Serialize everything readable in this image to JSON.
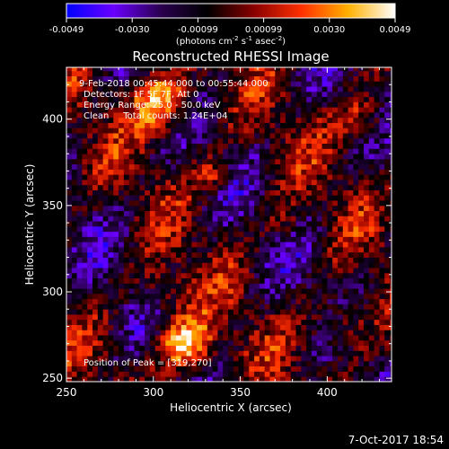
{
  "colorbar": {
    "ticks": [
      "-0.0049",
      "-0.0030",
      "-0.00099",
      "0.00099",
      "0.0030",
      "0.0049"
    ],
    "unit_label_base": "(photons cm",
    "unit_label_exp1": "-2",
    "unit_label_mid": " s",
    "unit_label_exp2": "-1",
    "unit_label_end": " asec",
    "unit_label_exp3": "-2",
    "unit_label_close": ")",
    "range": [
      -0.0049,
      0.0049
    ],
    "colors": [
      "#0000ff",
      "#6a00ff",
      "#2b0050",
      "#000000",
      "#8a0000",
      "#ff3000",
      "#ffb000",
      "#ffffff"
    ]
  },
  "annotations": {
    "line1": "9-Feb-2018 00:45:44.000 to 00:55:44.000",
    "line2": "Detectors: 1F 5F 7F, Att 0",
    "line3": "Energy Range: 25.0 - 50.0 keV",
    "line4": "Clean     Total counts: 1.24E+04",
    "peak": "Position of Peak = [319,270]"
  },
  "footer": {
    "timestamp": "7-Oct-2017 18:54"
  },
  "chart_data": {
    "type": "heatmap",
    "title": "Reconstructed RHESSI Image",
    "xlabel": "Heliocentric X (arcsec)",
    "ylabel": "Heliocentric Y (arcsec)",
    "xlim": [
      250,
      437
    ],
    "ylim": [
      248,
      430
    ],
    "x_ticks": [
      "250",
      "300",
      "350",
      "400"
    ],
    "y_ticks": [
      "250",
      "300",
      "350",
      "400"
    ],
    "peak": {
      "x": 319,
      "y": 270
    },
    "bright_sources": [
      {
        "x": 305,
        "y": 410,
        "intensity": 0.95,
        "sigma": 12
      },
      {
        "x": 319,
        "y": 270,
        "intensity": 1.0,
        "sigma": 11
      },
      {
        "x": 420,
        "y": 400,
        "intensity": 0.55,
        "sigma": 10
      },
      {
        "x": 410,
        "y": 280,
        "intensity": 0.5,
        "sigma": 11
      },
      {
        "x": 335,
        "y": 368,
        "intensity": 0.45,
        "sigma": 7
      },
      {
        "x": 305,
        "y": 300,
        "intensity": 0.35,
        "sigma": 10
      },
      {
        "x": 375,
        "y": 340,
        "intensity": 0.3,
        "sigma": 7
      }
    ],
    "grid": false
  }
}
